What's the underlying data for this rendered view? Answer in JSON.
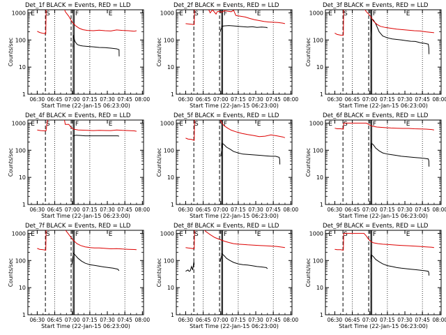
{
  "figure": {
    "background": "#ffffff",
    "axis_color": "#000000",
    "colors": {
      "events": "#000000",
      "lld": "#dd0000"
    }
  },
  "common": {
    "xlabel": "Start Time (22-Jan-15 06:23:00)",
    "ylabel": "Counts/sec",
    "x_ticks": [
      "06:30",
      "06:45",
      "07:00",
      "07:15",
      "07:30",
      "07:45",
      "08:00"
    ],
    "y_ticks": [
      "1",
      "10",
      "100",
      "1000"
    ],
    "event_labels": [
      "E",
      "S",
      "F",
      "E"
    ],
    "xlim_minutes": [
      -1,
      98
    ],
    "ylim": [
      1,
      1300
    ],
    "y_scale": "log"
  },
  "chart_data": [
    {
      "type": "line",
      "title": "Det_1f BLACK = Events, RED = LLD",
      "series": [
        {
          "name": "Events",
          "color": "black",
          "x": [
            7,
            13,
            14.5,
            14.6,
            37.5,
            38.2,
            39,
            40,
            41,
            42,
            44,
            46,
            50,
            55,
            60,
            65,
            70,
            75,
            76.5,
            77,
            77.1
          ],
          "y": [
            null,
            null,
            null,
            null,
            55,
            150,
            95,
            80,
            70,
            66,
            62,
            60,
            58,
            56,
            53,
            52,
            50,
            47,
            45,
            44,
            25
          ]
        },
        {
          "name": "LLD",
          "color": "red",
          "x": [
            7,
            9,
            12,
            14.3,
            14.6,
            16,
            30,
            31,
            34,
            37,
            40,
            43,
            46,
            50,
            55,
            60,
            65,
            70,
            75,
            80,
            85,
            90,
            92
          ],
          "y": [
            210,
            190,
            175,
            170,
            1500,
            1500,
            1500,
            1100,
            750,
            450,
            330,
            270,
            240,
            225,
            220,
            230,
            220,
            215,
            235,
            225,
            220,
            210,
            220
          ]
        }
      ]
    },
    {
      "type": "line",
      "title": "Det_2f BLACK = Events, RED = LLD",
      "series": [
        {
          "name": "Events",
          "color": "black",
          "x": [
            7,
            36.4,
            36.5,
            38,
            40,
            44,
            48,
            52,
            56,
            60,
            64,
            68,
            72,
            76,
            77
          ],
          "y": [
            null,
            null,
            200,
            320,
            330,
            340,
            330,
            320,
            310,
            300,
            310,
            290,
            300,
            290,
            280
          ]
        },
        {
          "name": "LLD",
          "color": "red",
          "x": [
            7,
            9,
            12,
            14.3,
            14.6,
            16,
            26,
            28,
            30,
            33,
            34,
            36,
            38,
            40,
            43,
            46,
            48,
            50,
            54,
            58,
            62,
            66,
            70,
            74,
            78,
            82,
            86,
            90,
            92
          ],
          "y": [
            400,
            390,
            380,
            370,
            1500,
            1500,
            1500,
            1000,
            1300,
            900,
            1100,
            1150,
            1050,
            1200,
            1150,
            1100,
            1250,
            800,
            750,
            700,
            620,
            560,
            520,
            480,
            460,
            450,
            440,
            420,
            400
          ]
        }
      ]
    },
    {
      "type": "line",
      "title": "Det_3f BLACK = Events, RED = LLD",
      "series": [
        {
          "name": "Events",
          "color": "black",
          "x": [
            7,
            37.5,
            37.6,
            38.5,
            40,
            42,
            45,
            48,
            52,
            56,
            60,
            64,
            68,
            72,
            76,
            80,
            84,
            87,
            87.5,
            87.6
          ],
          "y": [
            null,
            null,
            100,
            600,
            550,
            400,
            200,
            140,
            120,
            110,
            105,
            100,
            95,
            90,
            88,
            80,
            75,
            70,
            50,
            30
          ]
        },
        {
          "name": "LLD",
          "color": "red",
          "x": [
            7,
            9,
            12,
            14.3,
            14.6,
            16,
            32,
            34,
            36,
            38,
            40,
            43,
            46,
            50,
            55,
            60,
            65,
            70,
            75,
            80,
            85,
            90,
            92
          ],
          "y": [
            180,
            160,
            150,
            150,
            1500,
            1500,
            1500,
            1100,
            900,
            700,
            500,
            380,
            320,
            290,
            270,
            250,
            240,
            230,
            220,
            215,
            200,
            190,
            185
          ]
        }
      ]
    },
    {
      "type": "line",
      "title": "Det_4f BLACK = Events, RED = LLD",
      "series": [
        {
          "name": "Events",
          "color": "black",
          "x": [
            7,
            37,
            37.5,
            40,
            44,
            48,
            52,
            56,
            60,
            64,
            68,
            72,
            76,
            77
          ],
          "y": [
            null,
            null,
            330,
            360,
            350,
            340,
            340,
            340,
            340,
            340,
            340,
            340,
            340,
            330
          ]
        },
        {
          "name": "LLD",
          "color": "red",
          "x": [
            7,
            10,
            13,
            14.5,
            16,
            18,
            24,
            27,
            30,
            31,
            34,
            36,
            38,
            40,
            42,
            46,
            50,
            55,
            60,
            65,
            70,
            75,
            80,
            85,
            90,
            92
          ],
          "y": [
            560,
            530,
            520,
            520,
            1500,
            1500,
            1500,
            1500,
            1500,
            900,
            900,
            700,
            600,
            580,
            560,
            550,
            540,
            530,
            540,
            535,
            530,
            560,
            540,
            530,
            520,
            500
          ]
        }
      ]
    },
    {
      "type": "line",
      "title": "Det_5f BLACK = Events, RED = LLD",
      "series": [
        {
          "name": "Events",
          "color": "black",
          "x": [
            7,
            37,
            37.1,
            38.5,
            40,
            42,
            45,
            48,
            52,
            56,
            60,
            64,
            68,
            72,
            76,
            80,
            84,
            87,
            87.5,
            87.6
          ],
          "y": [
            null,
            null,
            60,
            180,
            160,
            130,
            110,
            90,
            80,
            72,
            70,
            68,
            66,
            64,
            62,
            60,
            60,
            55,
            45,
            30
          ]
        },
        {
          "name": "LLD",
          "color": "red",
          "x": [
            7,
            9,
            12,
            14.3,
            14.6,
            16,
            36,
            38,
            40,
            43,
            46,
            50,
            55,
            60,
            65,
            70,
            75,
            80,
            85,
            90,
            92
          ],
          "y": [
            280,
            260,
            250,
            230,
            1500,
            1500,
            1500,
            1000,
            800,
            650,
            550,
            480,
            420,
            380,
            350,
            320,
            330,
            370,
            340,
            310,
            290
          ]
        }
      ]
    },
    {
      "type": "line",
      "title": "Det_6f BLACK = Events, RED = LLD",
      "series": [
        {
          "name": "Events",
          "color": "black",
          "x": [
            7,
            37.5,
            37.6,
            38.5,
            40,
            42,
            45,
            48,
            52,
            56,
            60,
            64,
            68,
            72,
            76,
            80,
            84,
            87,
            87.5,
            87.6
          ],
          "y": [
            null,
            null,
            90,
            180,
            160,
            120,
            95,
            80,
            72,
            68,
            64,
            60,
            58,
            56,
            54,
            52,
            50,
            48,
            40,
            25
          ]
        },
        {
          "name": "LLD",
          "color": "red",
          "x": [
            7,
            9,
            12,
            14.3,
            14.6,
            16,
            34,
            36,
            38,
            40,
            43,
            46,
            50,
            55,
            60,
            65,
            70,
            75,
            80,
            85,
            90,
            92
          ],
          "y": [
            650,
            620,
            620,
            600,
            1000,
            1000,
            1000,
            900,
            800,
            760,
            720,
            700,
            680,
            660,
            650,
            640,
            640,
            620,
            610,
            600,
            580,
            560
          ]
        }
      ]
    },
    {
      "type": "line",
      "title": "Det_7f BLACK = Events, RED = LLD",
      "series": [
        {
          "name": "Events",
          "color": "black",
          "x": [
            7,
            36.5,
            36.6,
            38,
            40,
            42,
            45,
            48,
            52,
            56,
            60,
            64,
            68,
            72,
            76,
            77
          ],
          "y": [
            null,
            null,
            70,
            190,
            150,
            120,
            95,
            80,
            70,
            66,
            62,
            58,
            55,
            52,
            48,
            42
          ]
        },
        {
          "name": "LLD",
          "color": "red",
          "x": [
            7,
            9,
            12,
            14.3,
            14.6,
            16,
            30,
            32,
            35,
            38,
            41,
            44,
            48,
            52,
            56,
            60,
            65,
            70,
            75,
            80,
            85,
            90,
            92
          ],
          "y": [
            280,
            260,
            250,
            240,
            1500,
            1500,
            1500,
            1200,
            800,
            550,
            420,
            360,
            320,
            300,
            290,
            290,
            280,
            270,
            275,
            265,
            260,
            255,
            250
          ]
        }
      ]
    },
    {
      "type": "line",
      "title": "Det_8f BLACK = Events, RED = LLD",
      "series": [
        {
          "name": "Events",
          "color": "black",
          "x": [
            7,
            9,
            10,
            11,
            12,
            13,
            14,
            14.3,
            14.6,
            36.4,
            36.5,
            38,
            40,
            42,
            45,
            48,
            52,
            56,
            60,
            64,
            68,
            72,
            76,
            77
          ],
          "y": [
            40,
            45,
            40,
            42,
            60,
            45,
            90,
            70,
            null,
            null,
            90,
            180,
            150,
            120,
            100,
            85,
            75,
            70,
            68,
            64,
            60,
            58,
            55,
            50
          ]
        },
        {
          "name": "LLD",
          "color": "red",
          "x": [
            7,
            9,
            12,
            14.3,
            14.6,
            16,
            22,
            24,
            28,
            32,
            36,
            40,
            44,
            48,
            52,
            56,
            60,
            65,
            70,
            75,
            80,
            85,
            90,
            92
          ],
          "y": [
            300,
            290,
            280,
            270,
            1500,
            1500,
            1500,
            1200,
            900,
            700,
            600,
            520,
            460,
            420,
            400,
            390,
            380,
            370,
            360,
            350,
            340,
            330,
            310,
            300
          ]
        }
      ]
    },
    {
      "type": "line",
      "title": "Det_9f BLACK = Events, RED = LLD",
      "series": [
        {
          "name": "Events",
          "color": "black",
          "x": [
            7,
            37.5,
            37.6,
            38.5,
            40,
            42,
            45,
            48,
            52,
            56,
            60,
            64,
            68,
            72,
            76,
            80,
            84,
            87,
            87.5,
            87.6
          ],
          "y": [
            null,
            null,
            90,
            160,
            140,
            110,
            90,
            75,
            65,
            60,
            55,
            52,
            50,
            48,
            46,
            44,
            42,
            40,
            35,
            28
          ]
        },
        {
          "name": "LLD",
          "color": "red",
          "x": [
            7,
            9,
            12,
            14.3,
            14.6,
            16,
            32,
            34,
            36,
            38,
            40,
            44,
            48,
            52,
            56,
            60,
            65,
            70,
            75,
            80,
            85,
            90,
            92
          ],
          "y": [
            260,
            250,
            250,
            240,
            1000,
            1000,
            1000,
            800,
            600,
            500,
            450,
            420,
            400,
            390,
            380,
            370,
            360,
            350,
            340,
            330,
            320,
            310,
            300
          ]
        }
      ]
    }
  ]
}
